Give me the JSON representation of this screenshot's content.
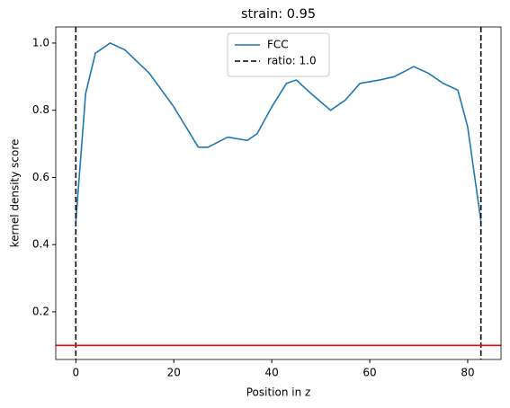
{
  "chart_data": {
    "type": "line",
    "title": "strain: 0.95",
    "xlabel": "Position in z",
    "ylabel": "kernel density score",
    "x": [
      0,
      2,
      4,
      7,
      10,
      15,
      20,
      25,
      27,
      31,
      35,
      37,
      40,
      43,
      45,
      48,
      52,
      55,
      58,
      62,
      65,
      69,
      72,
      75,
      78,
      80,
      82.7
    ],
    "series": [
      {
        "name": "FCC",
        "color": "#1f77b4",
        "values": [
          0.47,
          0.85,
          0.97,
          1.0,
          0.98,
          0.91,
          0.81,
          0.69,
          0.69,
          0.72,
          0.71,
          0.73,
          0.81,
          0.88,
          0.89,
          0.85,
          0.8,
          0.83,
          0.88,
          0.89,
          0.9,
          0.93,
          0.91,
          0.88,
          0.86,
          0.75,
          0.47
        ]
      }
    ],
    "vlines": {
      "name": "ratio: 1.0",
      "color": "#000000",
      "values": [
        0,
        82.7
      ]
    },
    "hline": {
      "color": "#ff0000",
      "value": 0.1
    },
    "xlim": [
      -4.1,
      86.8
    ],
    "ylim": [
      0.058,
      1.048
    ],
    "xticks": [
      0,
      20,
      40,
      60,
      80
    ],
    "yticks": [
      0.2,
      0.4,
      0.6,
      0.8,
      {
        "value": 1,
        "label": "1.0"
      }
    ],
    "legend": "upper center"
  }
}
